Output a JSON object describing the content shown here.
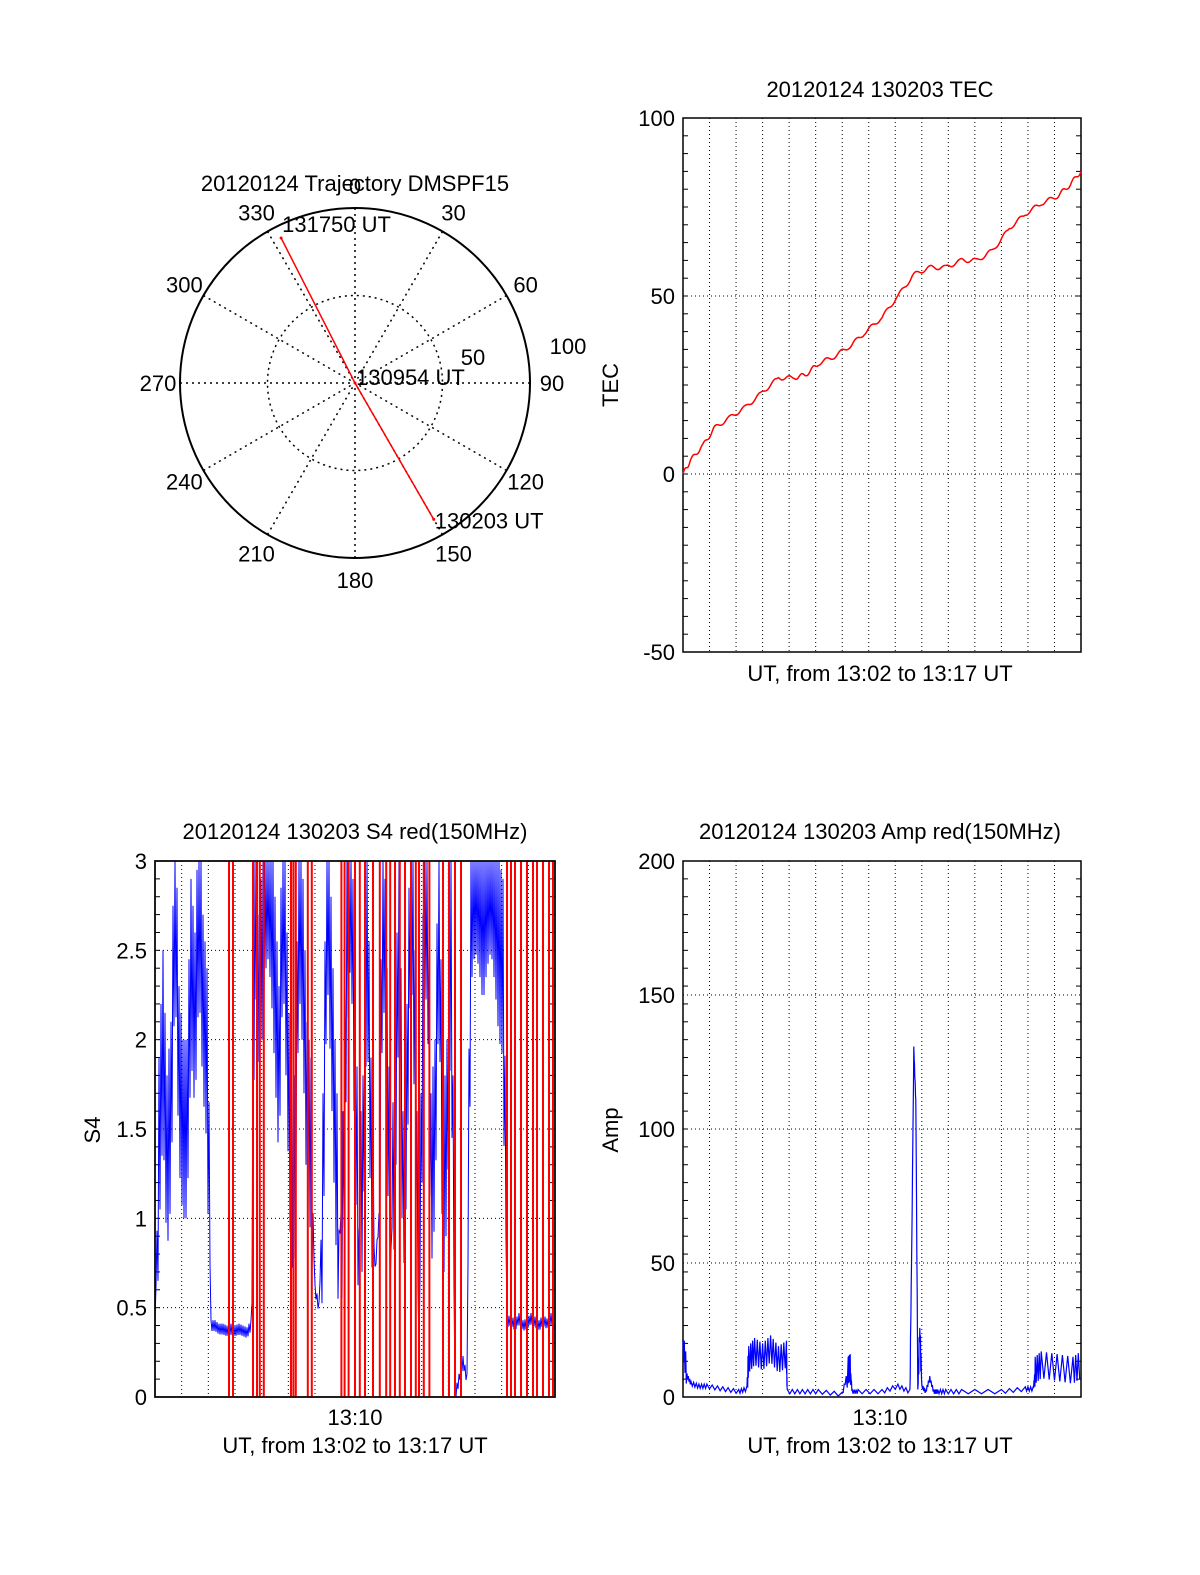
{
  "colors": {
    "primary": "#ff0000",
    "secondary": "#0000ff",
    "axis": "#000000"
  },
  "chart_data": [
    {
      "type": "scatter",
      "title": "20120124 Trajectory DMSPF15",
      "angle_labels": [
        "0",
        "30",
        "60",
        "90",
        "120",
        "150",
        "180",
        "210",
        "240",
        "270",
        "300",
        "330"
      ],
      "ring_labels": [
        "50",
        "100"
      ],
      "rlim": [
        0,
        100
      ],
      "trajectory": [
        {
          "label": "131750 UT",
          "azimuth_deg": 333,
          "radius": 93
        },
        {
          "label": "130954 UT",
          "azimuth_deg": 0,
          "radius": 0
        },
        {
          "label": "130203 UT",
          "azimuth_deg": 150,
          "radius": 90
        }
      ]
    },
    {
      "type": "line",
      "title": "20120124 130203 TEC",
      "xlabel": "UT, from 13:02 to 13:17 UT",
      "ylabel": "TEC",
      "ylim": [
        -50,
        100
      ],
      "yticks": [
        "100",
        "50",
        "0",
        "-50"
      ],
      "grid": true,
      "series": [
        {
          "color": "red",
          "x": [
            0,
            0.02,
            0.05,
            0.08,
            0.12,
            0.16,
            0.2,
            0.24,
            0.28,
            0.31,
            0.34,
            0.38,
            0.42,
            0.46,
            0.5,
            0.54,
            0.58,
            0.62,
            0.66,
            0.7,
            0.74,
            0.78,
            0.82,
            0.86,
            0.9,
            0.94,
            0.97,
            1.0
          ],
          "values": [
            0,
            4,
            8,
            13,
            16,
            19,
            23,
            27,
            27,
            28,
            31,
            33,
            36,
            40,
            44,
            50,
            56,
            58,
            58,
            60,
            60,
            63,
            69,
            73,
            76,
            78,
            81,
            85
          ]
        }
      ]
    },
    {
      "type": "line",
      "title": "20120124 130203 S4 red(150MHz)",
      "xlabel": "UT, from 13:02 to 13:17 UT",
      "ylabel": "S4",
      "ylim": [
        0,
        3
      ],
      "yticks": [
        "3",
        "2.5",
        "2",
        "1.5",
        "1",
        "0.5",
        "0"
      ],
      "xtick": "13:10",
      "grid": true,
      "red_lines_x": [
        0.185,
        0.195,
        0.245,
        0.255,
        0.262,
        0.272,
        0.34,
        0.346,
        0.352,
        0.382,
        0.392,
        0.466,
        0.474,
        0.484,
        0.5,
        0.512,
        0.525,
        0.545,
        0.562,
        0.578,
        0.588,
        0.6,
        0.612,
        0.625,
        0.64,
        0.652,
        0.66,
        0.672,
        0.686,
        0.72,
        0.735,
        0.75,
        0.765,
        0.88,
        0.89,
        0.9,
        0.915,
        0.93,
        0.945,
        0.955,
        0.97,
        0.985,
        0.995
      ],
      "blue_series": {
        "x": [
          0.0,
          0.01,
          0.02,
          0.03,
          0.04,
          0.05,
          0.06,
          0.07,
          0.08,
          0.09,
          0.1,
          0.11,
          0.12,
          0.13,
          0.14,
          0.15,
          0.16,
          0.17,
          0.18,
          0.19,
          0.2,
          0.21,
          0.22,
          0.23,
          0.24,
          0.25,
          0.26,
          0.27,
          0.28,
          0.29,
          0.3,
          0.31,
          0.32,
          0.33,
          0.34,
          0.35,
          0.36,
          0.37,
          0.38,
          0.39,
          0.4,
          0.41,
          0.42,
          0.43,
          0.44,
          0.45,
          0.46,
          0.47,
          0.48,
          0.49,
          0.5,
          0.51,
          0.52,
          0.53,
          0.54,
          0.55,
          0.56,
          0.57,
          0.58,
          0.59,
          0.6,
          0.61,
          0.62,
          0.63,
          0.64,
          0.65,
          0.66,
          0.67,
          0.68,
          0.69,
          0.7,
          0.71,
          0.72,
          0.73,
          0.74,
          0.75,
          0.76,
          0.77,
          0.78,
          0.79,
          0.8,
          0.81,
          0.82,
          0.83,
          0.84,
          0.85,
          0.86,
          0.87,
          0.88,
          0.89,
          0.9,
          0.91,
          0.92,
          0.93,
          0.94,
          0.95,
          0.96,
          0.97,
          0.98,
          0.99,
          1.0
        ],
        "values": [
          0.4,
          1.4,
          2.0,
          1.3,
          1.6,
          2.9,
          1.8,
          1.5,
          1.5,
          2.4,
          2.1,
          2.8,
          2.2,
          1.9,
          0.4,
          0.4,
          0.38,
          0.38,
          0.37,
          0.38,
          0.37,
          0.38,
          0.37,
          0.36,
          0.4,
          2.9,
          2.2,
          2.6,
          3.0,
          2.8,
          2.3,
          1.8,
          2.9,
          2.1,
          1.2,
          1.3,
          2.8,
          2.4,
          1.6,
          1.4,
          0.6,
          0.5,
          1.2,
          2.9,
          2.3,
          1.5,
          0.9,
          1.1,
          2.5,
          3.0,
          1.8,
          0.9,
          1.3,
          2.7,
          1.4,
          0.7,
          1.0,
          2.9,
          1.9,
          0.8,
          1.5,
          2.7,
          1.1,
          1.7,
          3.0,
          2.0,
          0.2,
          2.2,
          2.9,
          1.2,
          1.5,
          2.8,
          1.1,
          1.5,
          2.6,
          0.0,
          0.1,
          0.2,
          0.1,
          2.8,
          3.0,
          2.9,
          2.7,
          2.9,
          3.0,
          2.8,
          2.5,
          2.4,
          0.42,
          0.43,
          0.4,
          0.44,
          0.4,
          0.41,
          0.44,
          0.42,
          0.4,
          0.43,
          0.41,
          0.44,
          0.4
        ]
      }
    },
    {
      "type": "line",
      "title": "20120124 130203 Amp red(150MHz)",
      "xlabel": "UT, from 13:02 to 13:17 UT",
      "ylabel": "Amp",
      "ylim": [
        0,
        200
      ],
      "yticks": [
        "200",
        "150",
        "100",
        "50",
        "0"
      ],
      "xtick": "13:10",
      "grid": true,
      "series": [
        {
          "color": "blue",
          "x": [
            0.0,
            0.01,
            0.02,
            0.04,
            0.06,
            0.1,
            0.14,
            0.16,
            0.165,
            0.18,
            0.2,
            0.22,
            0.24,
            0.26,
            0.262,
            0.3,
            0.34,
            0.4,
            0.415,
            0.42,
            0.425,
            0.44,
            0.5,
            0.54,
            0.57,
            0.575,
            0.58,
            0.585,
            0.59,
            0.595,
            0.6,
            0.61,
            0.62,
            0.63,
            0.64,
            0.66,
            0.7,
            0.8,
            0.86,
            0.88,
            0.885,
            0.9,
            0.94,
            0.98,
            1.0
          ],
          "values": [
            20,
            8,
            5,
            4,
            4,
            3,
            2,
            3,
            14,
            17,
            15,
            18,
            14,
            16,
            2,
            2,
            2,
            1,
            10,
            11,
            2,
            2,
            2,
            4,
            2,
            60,
            130,
            110,
            2,
            25,
            4,
            2,
            7,
            2,
            2,
            2,
            2,
            2,
            3,
            3,
            10,
            12,
            11,
            10,
            12
          ]
        }
      ]
    }
  ]
}
